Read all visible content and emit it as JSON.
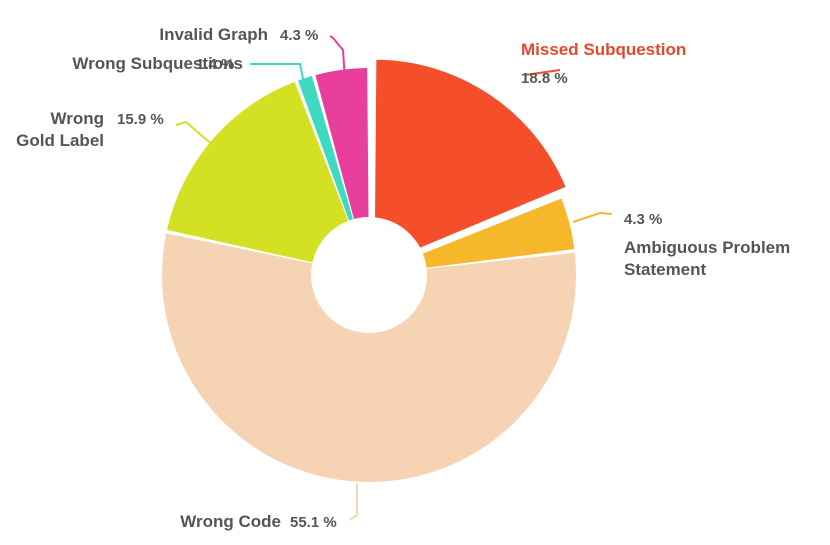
{
  "chart_data": {
    "type": "pie",
    "donut": true,
    "title": "",
    "categories": [
      "Missed Subquestion",
      "Ambiguous Problem Statement",
      "Wrong Code",
      "Wrong Gold Label",
      "Wrong Subquestions",
      "Invalid Graph"
    ],
    "values": [
      18.8,
      4.3,
      55.1,
      15.9,
      1.4,
      4.3
    ],
    "unit": "%",
    "colors": [
      "#f44e2b",
      "#f6b72b",
      "#f5d3b3",
      "#d4e023",
      "#3dd9c1",
      "#e83f9d"
    ],
    "exploded": [
      "Missed Subquestion"
    ],
    "legend": "none",
    "labels": [
      {
        "name_lines": [
          "Missed Subquestion"
        ],
        "pct": "18.8 %"
      },
      {
        "name_lines": [
          "Ambiguous Problem",
          "Statement"
        ],
        "pct": "4.3 %"
      },
      {
        "name_lines": [
          "Wrong Code"
        ],
        "pct": "55.1 %"
      },
      {
        "name_lines": [
          "Wrong",
          "Gold Label"
        ],
        "pct": "15.9 %"
      },
      {
        "name_lines": [
          "Wrong Subquestions"
        ],
        "pct": "1.4 %"
      },
      {
        "name_lines": [
          "Invalid Graph"
        ],
        "pct": "4.3 %"
      }
    ]
  }
}
